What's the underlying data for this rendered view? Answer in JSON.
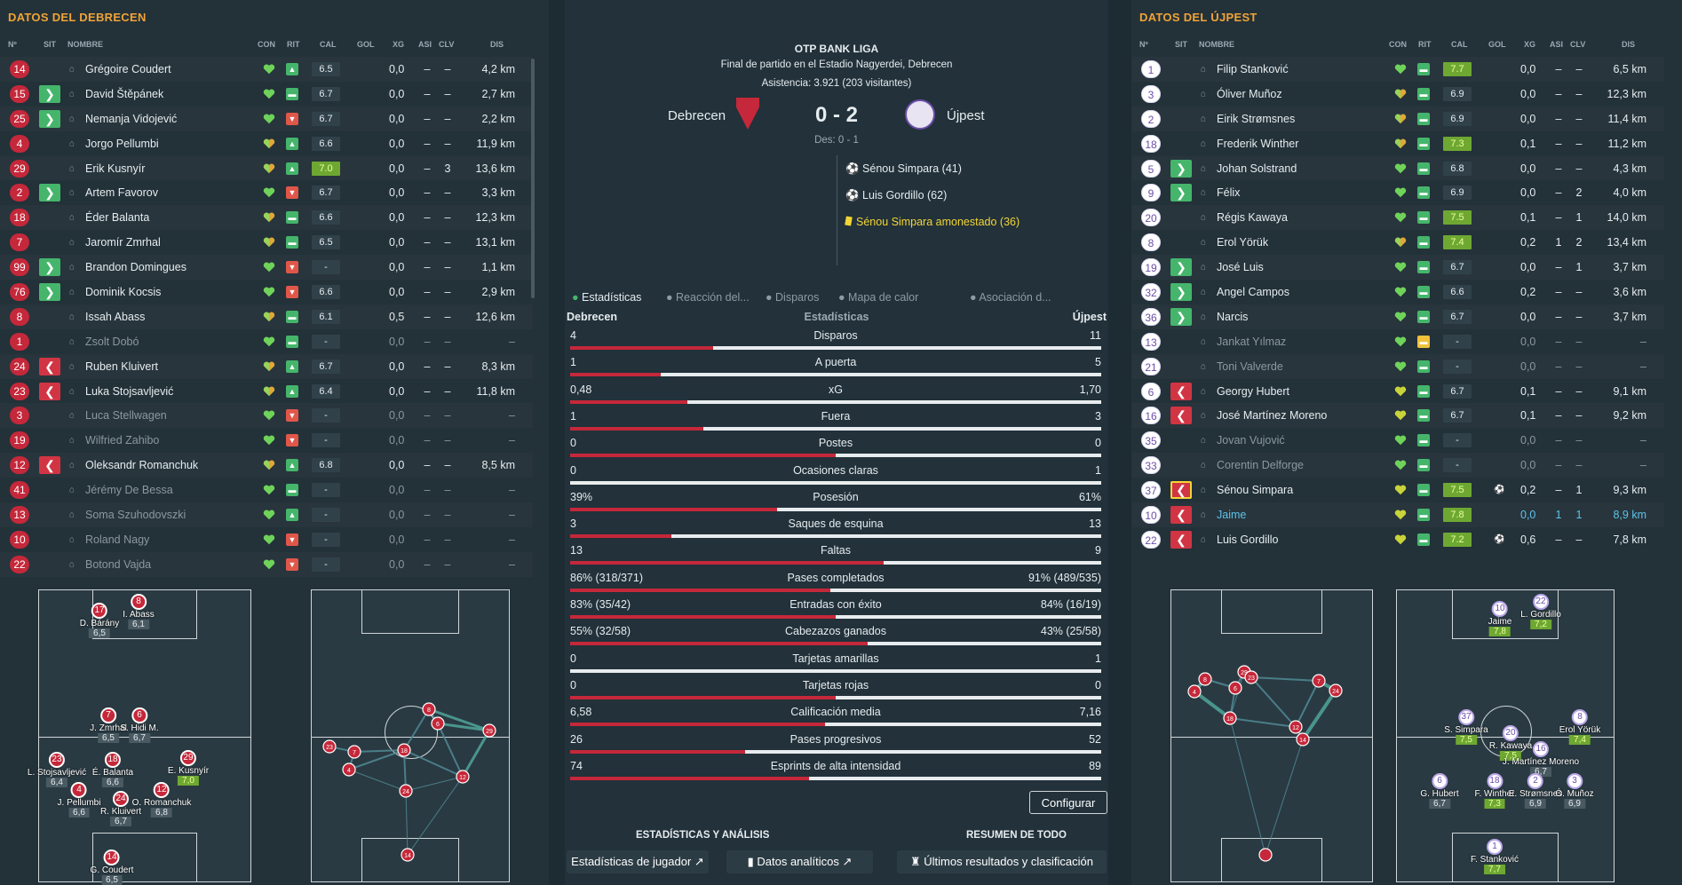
{
  "left": {
    "title": "DATOS DEL DEBRECEN",
    "headers": {
      "no": "Nº",
      "sit": "SIT",
      "nombre": "NOMBRE",
      "con": "CON",
      "rit": "RIT",
      "cal": "CAL",
      "gol": "GOL",
      "xg": "XG",
      "asi": "ASI",
      "clv": "CLV",
      "dis": "DIS"
    },
    "rows": [
      {
        "no": "14",
        "sit": "",
        "name": "Grégoire Coudert",
        "con": "green",
        "rit": "up",
        "cal": "6.5",
        "calg": false,
        "xg": "0,0",
        "asi": "–",
        "clv": "–",
        "dis": "4,2 km",
        "dim": false
      },
      {
        "no": "15",
        "sit": "in",
        "name": "David Štěpánek",
        "con": "green",
        "rit": "mid",
        "cal": "6.7",
        "calg": false,
        "xg": "0,0",
        "asi": "–",
        "clv": "–",
        "dis": "2,7 km",
        "dim": false
      },
      {
        "no": "25",
        "sit": "in",
        "name": "Nemanja Vidojević",
        "con": "green",
        "rit": "down",
        "cal": "6.7",
        "calg": false,
        "xg": "0,0",
        "asi": "–",
        "clv": "–",
        "dis": "2,2 km",
        "dim": false
      },
      {
        "no": "4",
        "sit": "",
        "name": "Jorgo Pellumbi",
        "con": "half",
        "rit": "up",
        "cal": "6.6",
        "calg": false,
        "xg": "0,0",
        "asi": "–",
        "clv": "–",
        "dis": "11,9 km",
        "dim": false
      },
      {
        "no": "29",
        "sit": "",
        "name": "Erik Kusnyír",
        "con": "half",
        "rit": "up",
        "cal": "7.0",
        "calg": true,
        "xg": "0,0",
        "asi": "–",
        "clv": "3",
        "dis": "13,6 km",
        "dim": false
      },
      {
        "no": "2",
        "sit": "in",
        "name": "Artem Favorov",
        "con": "green",
        "rit": "down",
        "cal": "6.7",
        "calg": false,
        "xg": "0,0",
        "asi": "–",
        "clv": "–",
        "dis": "3,3 km",
        "dim": false
      },
      {
        "no": "18",
        "sit": "",
        "name": "Éder Balanta",
        "con": "half",
        "rit": "mid",
        "cal": "6.6",
        "calg": false,
        "xg": "0,0",
        "asi": "–",
        "clv": "–",
        "dis": "12,3 km",
        "dim": false
      },
      {
        "no": "7",
        "sit": "",
        "name": "Jaromír Zmrhal",
        "con": "half",
        "rit": "mid",
        "cal": "6.5",
        "calg": false,
        "xg": "0,0",
        "asi": "–",
        "clv": "–",
        "dis": "13,1 km",
        "dim": false
      },
      {
        "no": "99",
        "sit": "in",
        "name": "Brandon Domingues",
        "con": "green",
        "rit": "down",
        "cal": "-",
        "calg": false,
        "xg": "0,0",
        "asi": "–",
        "clv": "–",
        "dis": "1,1 km",
        "dim": false
      },
      {
        "no": "76",
        "sit": "in",
        "name": "Dominik Kocsis",
        "con": "green",
        "rit": "down",
        "cal": "6.6",
        "calg": false,
        "xg": "0,0",
        "asi": "–",
        "clv": "–",
        "dis": "2,9 km",
        "dim": false
      },
      {
        "no": "8",
        "sit": "",
        "name": "Issah Abass",
        "con": "half",
        "rit": "mid",
        "cal": "6.1",
        "calg": false,
        "xg": "0,5",
        "asi": "–",
        "clv": "–",
        "dis": "12,6 km",
        "dim": false
      },
      {
        "no": "1",
        "sit": "",
        "name": "Zsolt Dobó",
        "con": "green",
        "rit": "mid",
        "cal": "-",
        "calg": false,
        "xg": "0,0",
        "asi": "–",
        "clv": "–",
        "dis": "–",
        "dim": true
      },
      {
        "no": "24",
        "sit": "out",
        "name": "Ruben Kluivert",
        "con": "half",
        "rit": "up",
        "cal": "6.7",
        "calg": false,
        "xg": "0,0",
        "asi": "–",
        "clv": "–",
        "dis": "8,3 km",
        "dim": false
      },
      {
        "no": "23",
        "sit": "out",
        "name": "Luka Stojsavljević",
        "con": "half",
        "rit": "up",
        "cal": "6.4",
        "calg": false,
        "xg": "0,0",
        "asi": "–",
        "clv": "–",
        "dis": "11,8 km",
        "dim": false
      },
      {
        "no": "3",
        "sit": "",
        "name": "Luca Stellwagen",
        "con": "green",
        "rit": "down",
        "cal": "-",
        "calg": false,
        "xg": "0,0",
        "asi": "–",
        "clv": "–",
        "dis": "–",
        "dim": true
      },
      {
        "no": "19",
        "sit": "",
        "name": "Wilfried Zahibo",
        "con": "green",
        "rit": "down",
        "cal": "-",
        "calg": false,
        "xg": "0,0",
        "asi": "–",
        "clv": "–",
        "dis": "–",
        "dim": true
      },
      {
        "no": "12",
        "sit": "out",
        "name": "Oleksandr Romanchuk",
        "con": "half",
        "rit": "up",
        "cal": "6.8",
        "calg": false,
        "xg": "0,0",
        "asi": "–",
        "clv": "–",
        "dis": "8,5 km",
        "dim": false
      },
      {
        "no": "41",
        "sit": "",
        "name": "Jérémy De Bessa",
        "con": "green",
        "rit": "mid",
        "cal": "-",
        "calg": false,
        "xg": "0,0",
        "asi": "–",
        "clv": "–",
        "dis": "–",
        "dim": true
      },
      {
        "no": "13",
        "sit": "",
        "name": "Soma Szuhodovszki",
        "con": "green",
        "rit": "up",
        "cal": "-",
        "calg": false,
        "xg": "0,0",
        "asi": "–",
        "clv": "–",
        "dis": "–",
        "dim": true
      },
      {
        "no": "10",
        "sit": "",
        "name": "Roland Nagy",
        "con": "green",
        "rit": "down",
        "cal": "-",
        "calg": false,
        "xg": "0,0",
        "asi": "–",
        "clv": "–",
        "dis": "–",
        "dim": true
      },
      {
        "no": "22",
        "sit": "",
        "name": "Botond Vajda",
        "con": "green",
        "rit": "down",
        "cal": "-",
        "calg": false,
        "xg": "0,0",
        "asi": "–",
        "clv": "–",
        "dis": "–",
        "dim": true
      }
    ]
  },
  "right": {
    "title": "DATOS DEL ÚJPEST",
    "headers": {
      "no": "Nº",
      "sit": "SIT",
      "nombre": "NOMBRE",
      "con": "CON",
      "rit": "RIT",
      "cal": "CAL",
      "gol": "GOL",
      "xg": "XG",
      "asi": "ASI",
      "clv": "CLV",
      "dis": "DIS"
    },
    "rows": [
      {
        "no": "1",
        "sit": "",
        "name": "Filip Stanković",
        "con": "green",
        "rit": "mid",
        "cal": "7.7",
        "calg": true,
        "xg": "0,0",
        "asi": "–",
        "clv": "–",
        "dis": "6,5 km",
        "dim": false,
        "gol": ""
      },
      {
        "no": "3",
        "sit": "",
        "name": "Óliver Muñoz",
        "con": "half",
        "rit": "mid",
        "cal": "6.9",
        "calg": false,
        "xg": "0,0",
        "asi": "–",
        "clv": "–",
        "dis": "12,3 km",
        "dim": false,
        "gol": ""
      },
      {
        "no": "2",
        "sit": "",
        "name": "Eirik Strømsnes",
        "con": "half",
        "rit": "mid",
        "cal": "6.9",
        "calg": false,
        "xg": "0,0",
        "asi": "–",
        "clv": "–",
        "dis": "11,4 km",
        "dim": false,
        "gol": ""
      },
      {
        "no": "18",
        "sit": "",
        "name": "Frederik Winther",
        "con": "half",
        "rit": "mid",
        "cal": "7.3",
        "calg": true,
        "xg": "0,1",
        "asi": "–",
        "clv": "–",
        "dis": "11,2 km",
        "dim": false,
        "gol": ""
      },
      {
        "no": "5",
        "sit": "in",
        "name": "Johan Solstrand",
        "con": "green",
        "rit": "mid",
        "cal": "6.8",
        "calg": false,
        "xg": "0,0",
        "asi": "–",
        "clv": "–",
        "dis": "4,3 km",
        "dim": false,
        "gol": ""
      },
      {
        "no": "9",
        "sit": "in",
        "name": "Félix",
        "con": "green",
        "rit": "mid",
        "cal": "6.9",
        "calg": false,
        "xg": "0,0",
        "asi": "–",
        "clv": "2",
        "dis": "4,0 km",
        "dim": false,
        "gol": ""
      },
      {
        "no": "20",
        "sit": "",
        "name": "Régis Kawaya",
        "con": "green",
        "rit": "mid",
        "cal": "7.5",
        "calg": true,
        "xg": "0,1",
        "asi": "–",
        "clv": "1",
        "dis": "14,0 km",
        "dim": false,
        "gol": ""
      },
      {
        "no": "8",
        "sit": "",
        "name": "Erol Yörük",
        "con": "half",
        "rit": "mid",
        "cal": "7.4",
        "calg": true,
        "xg": "0,2",
        "asi": "1",
        "clv": "2",
        "dis": "13,4 km",
        "dim": false,
        "gol": ""
      },
      {
        "no": "19",
        "sit": "in",
        "name": "José Luis",
        "con": "green",
        "rit": "mid",
        "cal": "6.7",
        "calg": false,
        "xg": "0,0",
        "asi": "–",
        "clv": "1",
        "dis": "3,7 km",
        "dim": false,
        "gol": ""
      },
      {
        "no": "32",
        "sit": "in",
        "name": "Angel Campos",
        "con": "green",
        "rit": "mid",
        "cal": "6.6",
        "calg": false,
        "xg": "0,2",
        "asi": "–",
        "clv": "–",
        "dis": "3,6 km",
        "dim": false,
        "gol": ""
      },
      {
        "no": "36",
        "sit": "in",
        "name": "Narcis",
        "con": "green",
        "rit": "mid",
        "cal": "6.7",
        "calg": false,
        "xg": "0,0",
        "asi": "–",
        "clv": "–",
        "dis": "3,7 km",
        "dim": false,
        "gol": ""
      },
      {
        "no": "13",
        "sit": "",
        "name": "Jankat Yılmaz",
        "con": "green",
        "rit": "yel",
        "cal": "-",
        "calg": false,
        "xg": "0,0",
        "asi": "–",
        "clv": "–",
        "dis": "–",
        "dim": true,
        "gol": ""
      },
      {
        "no": "21",
        "sit": "",
        "name": "Toni Valverde",
        "con": "green",
        "rit": "mid",
        "cal": "-",
        "calg": false,
        "xg": "0,0",
        "asi": "–",
        "clv": "–",
        "dis": "–",
        "dim": true,
        "gol": ""
      },
      {
        "no": "6",
        "sit": "out",
        "name": "Georgy Hubert",
        "con": "yel",
        "rit": "mid",
        "cal": "6.7",
        "calg": false,
        "xg": "0,1",
        "asi": "–",
        "clv": "–",
        "dis": "9,1 km",
        "dim": false,
        "gol": ""
      },
      {
        "no": "16",
        "sit": "out",
        "name": "José Martínez Moreno",
        "con": "yel",
        "rit": "mid",
        "cal": "6.7",
        "calg": false,
        "xg": "0,1",
        "asi": "–",
        "clv": "–",
        "dis": "9,2 km",
        "dim": false,
        "gol": ""
      },
      {
        "no": "35",
        "sit": "",
        "name": "Jovan Vujović",
        "con": "green",
        "rit": "mid",
        "cal": "-",
        "calg": false,
        "xg": "0,0",
        "asi": "–",
        "clv": "–",
        "dis": "–",
        "dim": true,
        "gol": ""
      },
      {
        "no": "33",
        "sit": "",
        "name": "Corentin Delforge",
        "con": "green",
        "rit": "mid",
        "cal": "-",
        "calg": false,
        "xg": "0,0",
        "asi": "–",
        "clv": "–",
        "dis": "–",
        "dim": true,
        "gol": ""
      },
      {
        "no": "37",
        "sit": "outy",
        "name": "Sénou Simpara",
        "con": "yel",
        "rit": "mid",
        "cal": "7.5",
        "calg": true,
        "xg": "0,2",
        "asi": "–",
        "clv": "1",
        "dis": "9,3 km",
        "dim": false,
        "gol": "⚽"
      },
      {
        "no": "10",
        "sit": "out",
        "name": "Jaime",
        "con": "yel",
        "rit": "mid",
        "cal": "7.8",
        "calg": true,
        "xg": "0,0",
        "asi": "1",
        "clv": "1",
        "dis": "8,9 km",
        "dim": false,
        "gol": "",
        "blue": true
      },
      {
        "no": "22",
        "sit": "out",
        "name": "Luis Gordillo",
        "con": "yel",
        "rit": "mid",
        "cal": "7.2",
        "calg": true,
        "xg": "0,6",
        "asi": "–",
        "clv": "–",
        "dis": "7,8 km",
        "dim": false,
        "gol": "⚽"
      }
    ]
  },
  "match": {
    "league": "OTP BANK LIGA",
    "venue": "Final de partido en el Estadio Nagyerdei, Debrecen",
    "attendance": "Asistencia: 3.921 (203 visitantes)",
    "home": "Debrecen",
    "away": "Újpest",
    "score": "0 - 2",
    "ht": "Des: 0 - 1",
    "events": [
      "Sénou Simpara (41)",
      "Luis Gordillo (62)",
      "Sénou Simpara amonestado (36)"
    ]
  },
  "tabs": [
    "Estadísticas",
    "Reacción del...",
    "Disparos",
    "Mapa de calor",
    "Asociación d..."
  ],
  "stats_header": {
    "home": "Debrecen",
    "mid": "Estadísticas",
    "away": "Újpest"
  },
  "stats": [
    {
      "l": "4",
      "m": "Disparos",
      "r": "11",
      "p": 0.27
    },
    {
      "l": "1",
      "m": "A puerta",
      "r": "5",
      "p": 0.17
    },
    {
      "l": "0,48",
      "m": "xG",
      "r": "1,70",
      "p": 0.22
    },
    {
      "l": "1",
      "m": "Fuera",
      "r": "3",
      "p": 0.25
    },
    {
      "l": "0",
      "m": "Postes",
      "r": "0",
      "p": 0.5
    },
    {
      "l": "0",
      "m": "Ocasiones claras",
      "r": "1",
      "p": 0.0
    },
    {
      "l": "39%",
      "m": "Posesión",
      "r": "61%",
      "p": 0.39
    },
    {
      "l": "3",
      "m": "Saques de esquina",
      "r": "13",
      "p": 0.19
    },
    {
      "l": "13",
      "m": "Faltas",
      "r": "9",
      "p": 0.59
    },
    {
      "l": "86% (318/371)",
      "m": "Pases completados",
      "r": "91% (489/535)",
      "p": 0.49
    },
    {
      "l": "83% (35/42)",
      "m": "Entradas con éxito",
      "r": "84% (16/19)",
      "p": 0.5
    },
    {
      "l": "55% (32/58)",
      "m": "Cabezazos ganados",
      "r": "43% (25/58)",
      "p": 0.56
    },
    {
      "l": "0",
      "m": "Tarjetas amarillas",
      "r": "1",
      "p": 0.0
    },
    {
      "l": "0",
      "m": "Tarjetas rojas",
      "r": "0",
      "p": 0.5
    },
    {
      "l": "6,58",
      "m": "Calificación media",
      "r": "7,16",
      "p": 0.48
    },
    {
      "l": "26",
      "m": "Pases progresivos",
      "r": "52",
      "p": 0.33
    },
    {
      "l": "74",
      "m": "Esprints de alta intensidad",
      "r": "89",
      "p": 0.45
    }
  ],
  "buttons": {
    "configurar": "Configurar",
    "sec1": "ESTADÍSTICAS Y ANÁLISIS",
    "sec2": "RESUMEN DE TODO",
    "b1": "Estadísticas de jugador",
    "b2": "Datos analíticos",
    "b3": "Últimos resultados y clasificación"
  },
  "pitch_left": [
    {
      "no": "17",
      "name": "D. Bárány",
      "r": "6,5",
      "g": false
    },
    {
      "no": "8",
      "name": "I. Abass",
      "r": "6,1",
      "g": false
    },
    {
      "no": "7",
      "name": "J. Zmrhal",
      "r": "6,5",
      "g": false
    },
    {
      "no": "6",
      "name": "S. Hidi M.",
      "r": "6,7",
      "g": false
    },
    {
      "no": "29",
      "name": "E. Kusnyír",
      "r": "7,0",
      "g": true
    },
    {
      "no": "23",
      "name": "L. Stojsavljević",
      "r": "6,4",
      "g": false
    },
    {
      "no": "18",
      "name": "É. Balanta",
      "r": "6,6",
      "g": false
    },
    {
      "no": "4",
      "name": "J. Pellumbi",
      "r": "6,6",
      "g": false
    },
    {
      "no": "24",
      "name": "R. Kluivert",
      "r": "6,7",
      "g": false
    },
    {
      "no": "12",
      "name": "O. Romanchuk",
      "r": "6,8",
      "g": false
    },
    {
      "no": "14",
      "name": "G. Coudert",
      "r": "6,5",
      "g": false
    }
  ],
  "pitch_right": [
    {
      "no": "10",
      "name": "Jaime",
      "r": "7,8",
      "g": true
    },
    {
      "no": "22",
      "name": "L. Gordillo",
      "r": "7,2",
      "g": true
    },
    {
      "no": "37",
      "name": "S. Simpara",
      "r": "7,5",
      "g": true
    },
    {
      "no": "8",
      "name": "Erol Yörük",
      "r": "7,4",
      "g": true
    },
    {
      "no": "20",
      "name": "R. Kawaya",
      "r": "7,5",
      "g": true
    },
    {
      "no": "16",
      "name": "J. Martínez Moreno",
      "r": "6,7",
      "g": false
    },
    {
      "no": "6",
      "name": "G. Hubert",
      "r": "6,7",
      "g": false
    },
    {
      "no": "18",
      "name": "F. Winther",
      "r": "7,3",
      "g": true
    },
    {
      "no": "2",
      "name": "E. Strømsnes",
      "r": "6,9",
      "g": false
    },
    {
      "no": "3",
      "name": "Ó. Muñoz",
      "r": "6,9",
      "g": false
    },
    {
      "no": "1",
      "name": "F. Stanković",
      "r": "7,7",
      "g": true
    }
  ],
  "net_left": [
    "8",
    "6",
    "29",
    "23",
    "7",
    "4",
    "18",
    "12",
    "24",
    "14"
  ],
  "net_right": [
    "37",
    "20",
    "10",
    "22",
    "8",
    "6",
    "18",
    "16",
    "3",
    "2",
    "1"
  ],
  "colors": {
    "accent": "#f0a436",
    "home": "#c5283a",
    "sub_in": "#45b56b",
    "sub_out": "#d13544",
    "good": "#6ea832"
  }
}
